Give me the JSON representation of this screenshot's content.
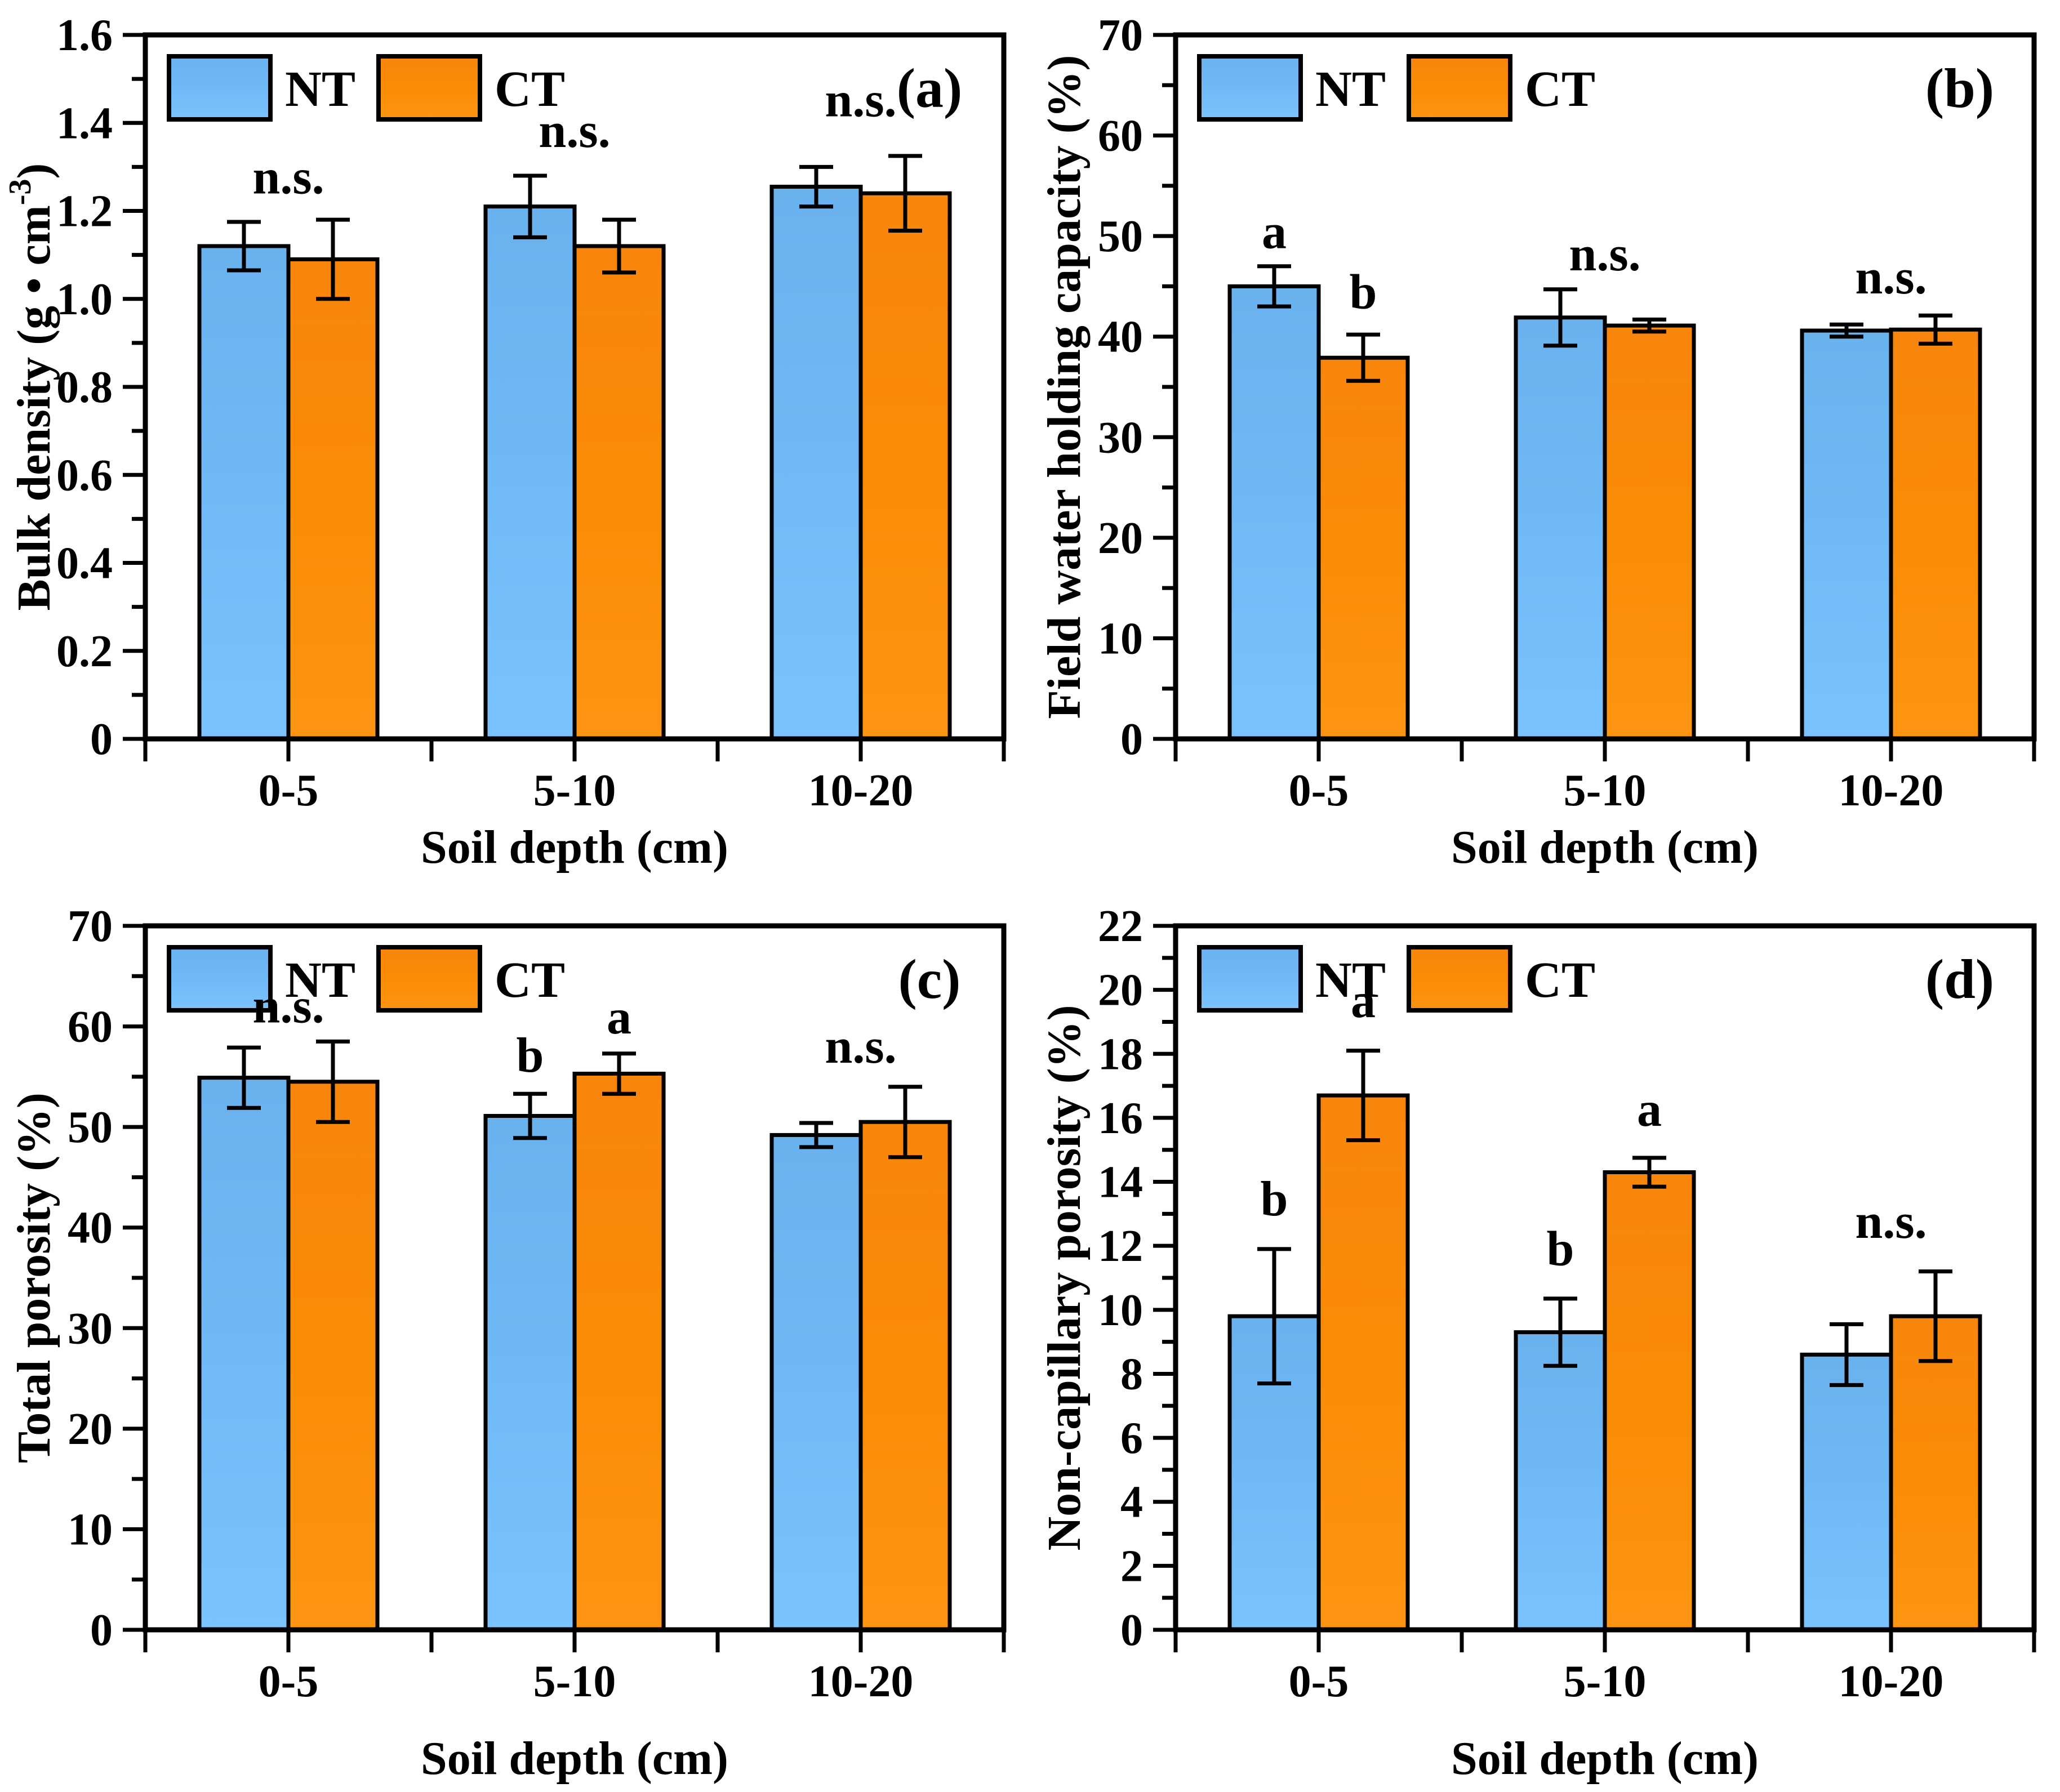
{
  "page": {
    "background": "#ffffff"
  },
  "colors": {
    "nt_fill": "#6FB9F6",
    "nt_fill_light": "#7AC3FE",
    "nt_fill_dark": "#69B2EE",
    "ct_fill": "#FA8C04",
    "ct_fill_light": "#FD9512",
    "ct_fill_dark": "#F8860D",
    "stroke": "#000000"
  },
  "legend": {
    "nt_label": "NT",
    "ct_label": "CT"
  },
  "chart_data": [
    {
      "id": "a",
      "panel_label": "(a)",
      "type": "bar",
      "title": "",
      "ylabel": "Bulk density (g • cm⁻³)",
      "ylabel_parts": [
        {
          "t": "Bulk density (g • cm"
        },
        {
          "t": "-3",
          "sup": true
        },
        {
          "t": ")"
        }
      ],
      "xlabel": "Soil depth (cm)",
      "categories": [
        "0-5",
        "5-10",
        "10-20"
      ],
      "ylim": [
        0,
        1.6
      ],
      "ymajor": 0.2,
      "yminor": 0.1,
      "ytick_labels": [
        "0",
        "0.2",
        "0.4",
        "0.6",
        "0.8",
        "1.0",
        "1.2",
        "1.4",
        "1.6"
      ],
      "grid": false,
      "legend_position": "top-left-inside",
      "series": [
        {
          "name": "NT",
          "values": [
            1.12,
            1.21,
            1.255
          ],
          "errors": [
            0.055,
            0.07,
            0.045
          ]
        },
        {
          "name": "CT",
          "values": [
            1.09,
            1.12,
            1.24
          ],
          "errors": [
            0.09,
            0.06,
            0.085
          ]
        }
      ],
      "annotations": [
        {
          "group": 0,
          "anchor": "center",
          "text": "n.s.",
          "v": 1.24
        },
        {
          "group": 1,
          "anchor": "center",
          "text": "n.s.",
          "v": 1.345
        },
        {
          "group": 2,
          "anchor": "center",
          "text": "n.s.",
          "v": 1.415
        }
      ]
    },
    {
      "id": "b",
      "panel_label": "(b)",
      "type": "bar",
      "title": "",
      "ylabel": "Field water holding capacity (%)",
      "ylabel_parts": [
        {
          "t": "Field water holding capacity (%)"
        }
      ],
      "xlabel": "Soil depth (cm)",
      "categories": [
        "0-5",
        "5-10",
        "10-20"
      ],
      "ylim": [
        0,
        70
      ],
      "ymajor": 10,
      "yminor": 5,
      "ytick_labels": [
        "0",
        "10",
        "20",
        "30",
        "40",
        "50",
        "60",
        "70"
      ],
      "grid": false,
      "legend_position": "top-left-inside",
      "series": [
        {
          "name": "NT",
          "values": [
            45.0,
            41.9,
            40.6
          ],
          "errors": [
            2.0,
            2.8,
            0.6
          ]
        },
        {
          "name": "CT",
          "values": [
            37.9,
            41.1,
            40.7
          ],
          "errors": [
            2.3,
            0.6,
            1.4
          ]
        }
      ],
      "annotations": [
        {
          "group": 0,
          "anchor": "NT",
          "text": "a",
          "v": 48.8
        },
        {
          "group": 0,
          "anchor": "CT",
          "text": "b",
          "v": 42.8
        },
        {
          "group": 1,
          "anchor": "center",
          "text": "n.s.",
          "v": 46.6
        },
        {
          "group": 2,
          "anchor": "center",
          "text": "n.s.",
          "v": 44.3
        }
      ]
    },
    {
      "id": "c",
      "panel_label": "(c)",
      "type": "bar",
      "title": "",
      "ylabel": "Total porosity (%)",
      "ylabel_parts": [
        {
          "t": "Total porosity (%)"
        }
      ],
      "xlabel": "Soil depth (cm)",
      "categories": [
        "0-5",
        "5-10",
        "10-20"
      ],
      "ylim": [
        0,
        70
      ],
      "ymajor": 10,
      "yminor": 5,
      "ytick_labels": [
        "0",
        "10",
        "20",
        "30",
        "40",
        "50",
        "60",
        "70"
      ],
      "grid": false,
      "legend_position": "top-left-inside",
      "series": [
        {
          "name": "NT",
          "values": [
            54.9,
            51.1,
            49.2
          ],
          "errors": [
            3.0,
            2.2,
            1.2
          ]
        },
        {
          "name": "CT",
          "values": [
            54.5,
            55.3,
            50.5
          ],
          "errors": [
            4.0,
            2.0,
            3.5
          ]
        }
      ],
      "annotations": [
        {
          "group": 0,
          "anchor": "center",
          "text": "n.s.",
          "v": 60.4
        },
        {
          "group": 1,
          "anchor": "NT",
          "text": "b",
          "v": 55.5
        },
        {
          "group": 1,
          "anchor": "CT",
          "text": "a",
          "v": 59.3
        },
        {
          "group": 2,
          "anchor": "center",
          "text": "n.s.",
          "v": 56.4
        }
      ]
    },
    {
      "id": "d",
      "panel_label": "(d)",
      "type": "bar",
      "title": "",
      "ylabel": "Non-capillary porosity (%)",
      "ylabel_parts": [
        {
          "t": "Non-capillary porosity (%)"
        }
      ],
      "xlabel": "Soil depth (cm)",
      "categories": [
        "0-5",
        "5-10",
        "10-20"
      ],
      "ylim": [
        0,
        22
      ],
      "ymajor": 2,
      "yminor": 1,
      "ytick_labels": [
        "0",
        "2",
        "4",
        "6",
        "8",
        "10",
        "12",
        "14",
        "16",
        "18",
        "20",
        "22"
      ],
      "grid": false,
      "legend_position": "top-left-inside",
      "series": [
        {
          "name": "NT",
          "values": [
            9.8,
            9.3,
            8.6
          ],
          "errors": [
            2.1,
            1.05,
            0.95
          ]
        },
        {
          "name": "CT",
          "values": [
            16.7,
            14.3,
            9.8
          ],
          "errors": [
            1.4,
            0.45,
            1.4
          ]
        }
      ],
      "annotations": [
        {
          "group": 0,
          "anchor": "NT",
          "text": "b",
          "v": 12.95
        },
        {
          "group": 0,
          "anchor": "CT",
          "text": "a",
          "v": 19.15
        },
        {
          "group": 1,
          "anchor": "NT",
          "text": "b",
          "v": 11.4
        },
        {
          "group": 1,
          "anchor": "CT",
          "text": "a",
          "v": 15.75
        },
        {
          "group": 2,
          "anchor": "center",
          "text": "n.s.",
          "v": 12.25
        }
      ]
    }
  ]
}
